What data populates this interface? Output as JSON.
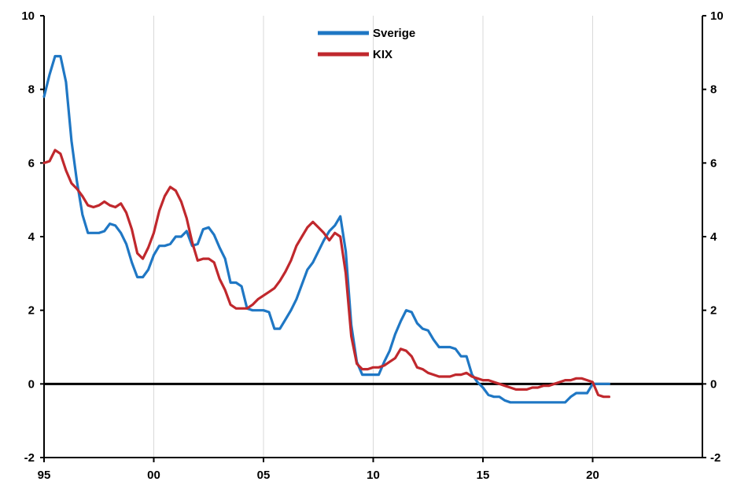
{
  "chart_data": {
    "type": "line",
    "title": "",
    "xlabel": "",
    "ylabel": "",
    "xlim": [
      1995,
      2025
    ],
    "ylim": [
      -2,
      10
    ],
    "y_ticks": [
      -2,
      0,
      2,
      4,
      6,
      8,
      10
    ],
    "y_tick_labels": [
      "-2",
      "0",
      "2",
      "4",
      "6",
      "8",
      "10"
    ],
    "x_ticks": [
      1995,
      2000,
      2005,
      2010,
      2015,
      2020
    ],
    "x_tick_labels": [
      "95",
      "00",
      "05",
      "10",
      "15",
      "20"
    ],
    "grid": {
      "vertical": true,
      "horizontal": false
    },
    "legend_position": "top-center",
    "series": [
      {
        "name": "Sverige",
        "color": "#1f77c4",
        "points": [
          [
            1995.0,
            7.8
          ],
          [
            1995.25,
            8.4
          ],
          [
            1995.5,
            8.9
          ],
          [
            1995.75,
            8.9
          ],
          [
            1996.0,
            8.2
          ],
          [
            1996.25,
            6.6
          ],
          [
            1996.5,
            5.5
          ],
          [
            1996.75,
            4.6
          ],
          [
            1997.0,
            4.1
          ],
          [
            1997.25,
            4.1
          ],
          [
            1997.5,
            4.1
          ],
          [
            1997.75,
            4.15
          ],
          [
            1998.0,
            4.35
          ],
          [
            1998.25,
            4.3
          ],
          [
            1998.5,
            4.1
          ],
          [
            1998.75,
            3.8
          ],
          [
            1999.0,
            3.3
          ],
          [
            1999.25,
            2.9
          ],
          [
            1999.5,
            2.9
          ],
          [
            1999.75,
            3.1
          ],
          [
            2000.0,
            3.5
          ],
          [
            2000.25,
            3.75
          ],
          [
            2000.5,
            3.75
          ],
          [
            2000.75,
            3.8
          ],
          [
            2001.0,
            4.0
          ],
          [
            2001.25,
            4.0
          ],
          [
            2001.5,
            4.15
          ],
          [
            2001.75,
            3.75
          ],
          [
            2002.0,
            3.8
          ],
          [
            2002.25,
            4.2
          ],
          [
            2002.5,
            4.25
          ],
          [
            2002.75,
            4.05
          ],
          [
            2003.0,
            3.7
          ],
          [
            2003.25,
            3.4
          ],
          [
            2003.5,
            2.75
          ],
          [
            2003.75,
            2.75
          ],
          [
            2004.0,
            2.65
          ],
          [
            2004.25,
            2.05
          ],
          [
            2004.5,
            2.0
          ],
          [
            2004.75,
            2.0
          ],
          [
            2005.0,
            2.0
          ],
          [
            2005.25,
            1.95
          ],
          [
            2005.5,
            1.5
          ],
          [
            2005.75,
            1.5
          ],
          [
            2006.0,
            1.75
          ],
          [
            2006.25,
            2.0
          ],
          [
            2006.5,
            2.3
          ],
          [
            2006.75,
            2.7
          ],
          [
            2007.0,
            3.1
          ],
          [
            2007.25,
            3.3
          ],
          [
            2007.5,
            3.6
          ],
          [
            2007.75,
            3.9
          ],
          [
            2008.0,
            4.15
          ],
          [
            2008.25,
            4.3
          ],
          [
            2008.5,
            4.55
          ],
          [
            2008.75,
            3.6
          ],
          [
            2009.0,
            1.6
          ],
          [
            2009.25,
            0.6
          ],
          [
            2009.5,
            0.25
          ],
          [
            2009.75,
            0.25
          ],
          [
            2010.0,
            0.25
          ],
          [
            2010.25,
            0.25
          ],
          [
            2010.5,
            0.6
          ],
          [
            2010.75,
            0.9
          ],
          [
            2011.0,
            1.35
          ],
          [
            2011.25,
            1.7
          ],
          [
            2011.5,
            2.0
          ],
          [
            2011.75,
            1.95
          ],
          [
            2012.0,
            1.65
          ],
          [
            2012.25,
            1.5
          ],
          [
            2012.5,
            1.45
          ],
          [
            2012.75,
            1.2
          ],
          [
            2013.0,
            1.0
          ],
          [
            2013.25,
            1.0
          ],
          [
            2013.5,
            1.0
          ],
          [
            2013.75,
            0.95
          ],
          [
            2014.0,
            0.75
          ],
          [
            2014.25,
            0.75
          ],
          [
            2014.5,
            0.25
          ],
          [
            2014.75,
            0.05
          ],
          [
            2015.0,
            -0.1
          ],
          [
            2015.25,
            -0.3
          ],
          [
            2015.5,
            -0.35
          ],
          [
            2015.75,
            -0.35
          ],
          [
            2016.0,
            -0.45
          ],
          [
            2016.25,
            -0.5
          ],
          [
            2016.5,
            -0.5
          ],
          [
            2016.75,
            -0.5
          ],
          [
            2017.0,
            -0.5
          ],
          [
            2017.25,
            -0.5
          ],
          [
            2017.5,
            -0.5
          ],
          [
            2017.75,
            -0.5
          ],
          [
            2018.0,
            -0.5
          ],
          [
            2018.25,
            -0.5
          ],
          [
            2018.5,
            -0.5
          ],
          [
            2018.75,
            -0.5
          ],
          [
            2019.0,
            -0.35
          ],
          [
            2019.25,
            -0.25
          ],
          [
            2019.5,
            -0.25
          ],
          [
            2019.75,
            -0.25
          ],
          [
            2020.0,
            0.0
          ],
          [
            2020.25,
            0.0
          ],
          [
            2020.5,
            0.0
          ],
          [
            2020.75,
            0.0
          ]
        ]
      },
      {
        "name": "KIX",
        "color": "#c0282d",
        "points": [
          [
            1995.0,
            6.0
          ],
          [
            1995.25,
            6.05
          ],
          [
            1995.5,
            6.35
          ],
          [
            1995.75,
            6.25
          ],
          [
            1996.0,
            5.8
          ],
          [
            1996.25,
            5.45
          ],
          [
            1996.5,
            5.3
          ],
          [
            1996.75,
            5.1
          ],
          [
            1997.0,
            4.85
          ],
          [
            1997.25,
            4.8
          ],
          [
            1997.5,
            4.85
          ],
          [
            1997.75,
            4.95
          ],
          [
            1998.0,
            4.85
          ],
          [
            1998.25,
            4.8
          ],
          [
            1998.5,
            4.9
          ],
          [
            1998.75,
            4.65
          ],
          [
            1999.0,
            4.2
          ],
          [
            1999.25,
            3.55
          ],
          [
            1999.5,
            3.4
          ],
          [
            1999.75,
            3.7
          ],
          [
            2000.0,
            4.1
          ],
          [
            2000.25,
            4.7
          ],
          [
            2000.5,
            5.1
          ],
          [
            2000.75,
            5.35
          ],
          [
            2001.0,
            5.25
          ],
          [
            2001.25,
            4.95
          ],
          [
            2001.5,
            4.5
          ],
          [
            2001.75,
            3.85
          ],
          [
            2002.0,
            3.35
          ],
          [
            2002.25,
            3.4
          ],
          [
            2002.5,
            3.4
          ],
          [
            2002.75,
            3.3
          ],
          [
            2003.0,
            2.85
          ],
          [
            2003.25,
            2.55
          ],
          [
            2003.5,
            2.15
          ],
          [
            2003.75,
            2.05
          ],
          [
            2004.0,
            2.05
          ],
          [
            2004.25,
            2.05
          ],
          [
            2004.5,
            2.15
          ],
          [
            2004.75,
            2.3
          ],
          [
            2005.0,
            2.4
          ],
          [
            2005.25,
            2.5
          ],
          [
            2005.5,
            2.6
          ],
          [
            2005.75,
            2.8
          ],
          [
            2006.0,
            3.05
          ],
          [
            2006.25,
            3.35
          ],
          [
            2006.5,
            3.75
          ],
          [
            2006.75,
            4.0
          ],
          [
            2007.0,
            4.25
          ],
          [
            2007.25,
            4.4
          ],
          [
            2007.5,
            4.25
          ],
          [
            2007.75,
            4.1
          ],
          [
            2008.0,
            3.9
          ],
          [
            2008.25,
            4.1
          ],
          [
            2008.5,
            4.0
          ],
          [
            2008.75,
            3.0
          ],
          [
            2009.0,
            1.3
          ],
          [
            2009.25,
            0.55
          ],
          [
            2009.5,
            0.4
          ],
          [
            2009.75,
            0.4
          ],
          [
            2010.0,
            0.45
          ],
          [
            2010.25,
            0.45
          ],
          [
            2010.5,
            0.5
          ],
          [
            2010.75,
            0.6
          ],
          [
            2011.0,
            0.7
          ],
          [
            2011.25,
            0.95
          ],
          [
            2011.5,
            0.9
          ],
          [
            2011.75,
            0.75
          ],
          [
            2012.0,
            0.45
          ],
          [
            2012.25,
            0.4
          ],
          [
            2012.5,
            0.3
          ],
          [
            2012.75,
            0.25
          ],
          [
            2013.0,
            0.2
          ],
          [
            2013.25,
            0.2
          ],
          [
            2013.5,
            0.2
          ],
          [
            2013.75,
            0.25
          ],
          [
            2014.0,
            0.25
          ],
          [
            2014.25,
            0.3
          ],
          [
            2014.5,
            0.2
          ],
          [
            2014.75,
            0.15
          ],
          [
            2015.0,
            0.1
          ],
          [
            2015.25,
            0.1
          ],
          [
            2015.5,
            0.05
          ],
          [
            2015.75,
            0.0
          ],
          [
            2016.0,
            -0.05
          ],
          [
            2016.25,
            -0.1
          ],
          [
            2016.5,
            -0.15
          ],
          [
            2016.75,
            -0.15
          ],
          [
            2017.0,
            -0.15
          ],
          [
            2017.25,
            -0.1
          ],
          [
            2017.5,
            -0.1
          ],
          [
            2017.75,
            -0.05
          ],
          [
            2018.0,
            -0.05
          ],
          [
            2018.25,
            0.0
          ],
          [
            2018.5,
            0.05
          ],
          [
            2018.75,
            0.1
          ],
          [
            2019.0,
            0.1
          ],
          [
            2019.25,
            0.15
          ],
          [
            2019.5,
            0.15
          ],
          [
            2019.75,
            0.1
          ],
          [
            2020.0,
            0.05
          ],
          [
            2020.25,
            -0.3
          ],
          [
            2020.5,
            -0.35
          ],
          [
            2020.75,
            -0.35
          ]
        ]
      }
    ]
  }
}
